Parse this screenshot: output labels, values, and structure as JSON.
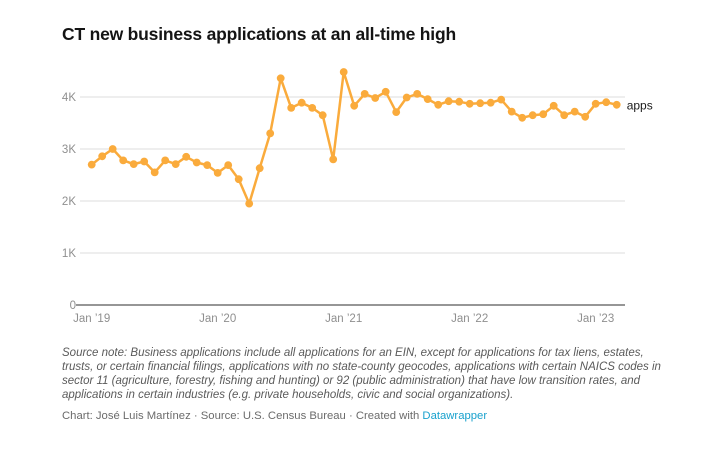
{
  "title": "CT new business applications at an all-time high",
  "footer": {
    "source_note": "Source note: Business applications include all applications for an EIN, except for applications for tax liens, estates, trusts, or certain financial filings, applications with no state-county geocodes, applications with certain NAICS codes in sector 11 (agriculture, forestry, fishing and hunting) or 92 (public administration) that have low transition rates, and applications in certain industries (e.g. private households, civic and social organizations).",
    "credit_prefix": "Chart: José Luis Martínez · Source: U.S. Census Bureau · Created with ",
    "credit_link": "Datawrapper"
  },
  "colors": {
    "line": "#FAAB3C",
    "grid": "#dcdcdc",
    "axis_line": "#2e2e2e",
    "tick_text": "#8f8f8f",
    "series_label_text": "#1a1a1a",
    "link": "#18a1cd"
  },
  "chart_data": {
    "type": "line",
    "title": "CT new business applications at an all-time high",
    "xlabel": "",
    "ylabel": "",
    "ylim": [
      0,
      4600
    ],
    "grid": "horizontal",
    "legend_position": "right-of-last-point",
    "x": [
      "2019-01",
      "2019-02",
      "2019-03",
      "2019-04",
      "2019-05",
      "2019-06",
      "2019-07",
      "2019-08",
      "2019-09",
      "2019-10",
      "2019-11",
      "2019-12",
      "2020-01",
      "2020-02",
      "2020-03",
      "2020-04",
      "2020-05",
      "2020-06",
      "2020-07",
      "2020-08",
      "2020-09",
      "2020-10",
      "2020-11",
      "2020-12",
      "2021-01",
      "2021-02",
      "2021-03",
      "2021-04",
      "2021-05",
      "2021-06",
      "2021-07",
      "2021-08",
      "2021-09",
      "2021-10",
      "2021-11",
      "2021-12",
      "2022-01",
      "2022-02",
      "2022-03",
      "2022-04",
      "2022-05",
      "2022-06",
      "2022-07",
      "2022-08",
      "2022-09",
      "2022-10",
      "2022-11",
      "2022-12",
      "2023-01",
      "2023-02",
      "2023-03"
    ],
    "series": [
      {
        "name": "apps",
        "values": [
          2700,
          2860,
          3000,
          2780,
          2710,
          2760,
          2550,
          2780,
          2710,
          2850,
          2740,
          2690,
          2540,
          2690,
          2420,
          1950,
          2630,
          3300,
          4360,
          3790,
          3890,
          3790,
          3650,
          2800,
          4480,
          3830,
          4060,
          3980,
          4100,
          3710,
          3990,
          4060,
          3960,
          3850,
          3920,
          3910,
          3870,
          3880,
          3890,
          3950,
          3720,
          3600,
          3650,
          3670,
          3830,
          3650,
          3720,
          3620,
          3870,
          3900,
          3850
        ]
      }
    ],
    "y_ticks": {
      "values": [
        0,
        1000,
        2000,
        3000,
        4000
      ],
      "labels": [
        "0",
        "1K",
        "2K",
        "3K",
        "4K"
      ]
    },
    "x_ticks": {
      "months": [
        "2019-01",
        "2020-01",
        "2021-01",
        "2022-01",
        "2023-01"
      ],
      "labels": [
        "Jan ’19",
        "Jan ’20",
        "Jan ’21",
        "Jan ’22",
        "Jan ’23"
      ]
    }
  }
}
